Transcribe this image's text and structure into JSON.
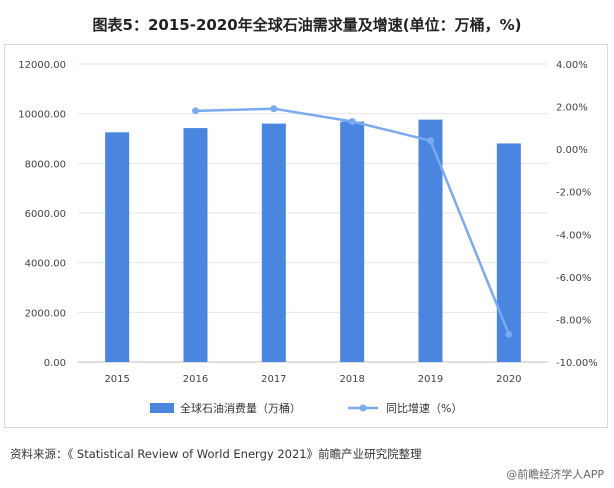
{
  "title": "图表5：2015-2020年全球石油需求量及增速(单位：万桶，%)",
  "chart_data": {
    "type": "bar",
    "title": "图表5：2015-2020年全球石油需求量及增速(单位：万桶，%)",
    "categories": [
      "2015",
      "2016",
      "2017",
      "2018",
      "2019",
      "2020"
    ],
    "series": [
      {
        "name": "全球石油消费量（万桶）",
        "type": "bar",
        "axis": "left",
        "values": [
          9250,
          9420,
          9600,
          9680,
          9760,
          8800
        ],
        "color": "#4a86e0"
      },
      {
        "name": "同比增速（%）",
        "type": "line",
        "axis": "right",
        "values": [
          null,
          1.8,
          1.9,
          1.3,
          0.4,
          -8.7
        ],
        "color": "#7aaaf0"
      }
    ],
    "left_axis": {
      "ylim": [
        0,
        12000
      ],
      "ticks": [
        "0.00",
        "2000.00",
        "4000.00",
        "6000.00",
        "8000.00",
        "10000.00",
        "12000.00"
      ]
    },
    "right_axis": {
      "ylim": [
        -10,
        4
      ],
      "ticks": [
        "-10.00%",
        "-8.00%",
        "-6.00%",
        "-4.00%",
        "-2.00%",
        "0.00%",
        "2.00%",
        "4.00%"
      ]
    },
    "legend_position": "bottom"
  },
  "source": "资料来源：《 Statistical Review of World Energy 2021》前瞻产业研究院整理",
  "brand": "@前瞻经济学人APP",
  "colors": {
    "bar": "#4a86e0",
    "line": "#7aaaf0",
    "grid": "#e6e6e6"
  }
}
